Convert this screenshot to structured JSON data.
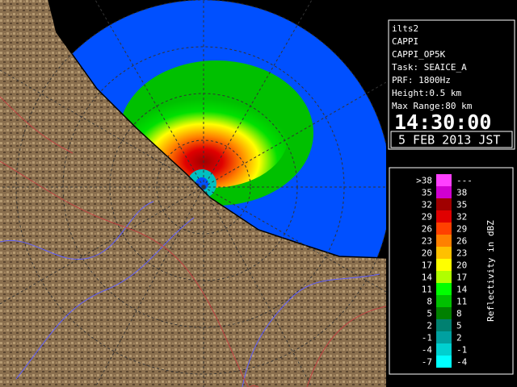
{
  "info": {
    "lines": [
      "ilts2",
      "CAPPI",
      "CAPPI_OP5K",
      "Task: SEAICE_A",
      "PRF: 1800Hz",
      "Height:0.5 km",
      "Max Range:80 km"
    ],
    "time": "14:30:00",
    "date": "5 FEB 2013 JST"
  },
  "legend": {
    "title": "Reflectivity in dBZ",
    "rows": [
      {
        "low": ">38",
        "high": "---",
        "color": "#ff40ff"
      },
      {
        "low": "35",
        "high": "38",
        "color": "#d000d0"
      },
      {
        "low": "32",
        "high": "35",
        "color": "#a00000"
      },
      {
        "low": "29",
        "high": "32",
        "color": "#e00000"
      },
      {
        "low": "26",
        "high": "29",
        "color": "#ff4000"
      },
      {
        "low": "23",
        "high": "26",
        "color": "#ff8000"
      },
      {
        "low": "20",
        "high": "23",
        "color": "#ffc000"
      },
      {
        "low": "17",
        "high": "20",
        "color": "#ffff00"
      },
      {
        "low": "14",
        "high": "17",
        "color": "#b0ff00"
      },
      {
        "low": "11",
        "high": "14",
        "color": "#00ff00"
      },
      {
        "low": "8",
        "high": "11",
        "color": "#00c000"
      },
      {
        "low": "5",
        "high": "8",
        "color": "#008000"
      },
      {
        "low": "2",
        "high": "5",
        "color": "#008070"
      },
      {
        "low": "-1",
        "high": "2",
        "color": "#00a0a0"
      },
      {
        "low": "-4",
        "high": "-1",
        "color": "#00d0d0"
      },
      {
        "low": "-7",
        "high": "-4",
        "color": "#00ffff"
      }
    ]
  }
}
